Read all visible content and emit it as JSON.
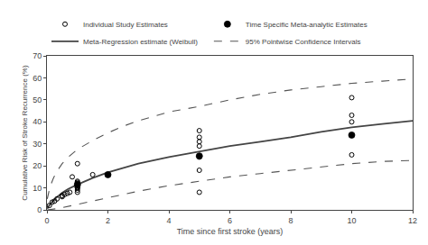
{
  "chart_data": {
    "type": "line",
    "xlabel": "Time since first stroke (years)",
    "ylabel": "Cumulative Risk of Stroke Recurrence (%)",
    "xlim": [
      0,
      12
    ],
    "ylim": [
      0,
      70
    ],
    "xticks": [
      0,
      2,
      4,
      6,
      8,
      10,
      12
    ],
    "yticks": [
      0,
      10,
      20,
      30,
      40,
      50,
      60,
      70
    ],
    "grid": false,
    "legend": "upper left",
    "series": [
      {
        "name": "Individual Study Estimates",
        "type": "scatter",
        "marker": "circle-open",
        "color": "#000000",
        "x": [
          0.08,
          0.17,
          0.25,
          0.33,
          0.5,
          0.5,
          0.58,
          0.67,
          0.75,
          0.83,
          1.0,
          1.0,
          1.0,
          1.0,
          1.0,
          1.0,
          1.0,
          1.0,
          1.0,
          1.0,
          1.0,
          1.5,
          2.0,
          5.0,
          5.0,
          5.0,
          5.0,
          5.0,
          5.0,
          5.0,
          10.0,
          10.0,
          10.0,
          10.0
        ],
        "values": [
          2.0,
          3.5,
          4.0,
          5.0,
          6.0,
          6.5,
          7.0,
          7.5,
          8.0,
          15.0,
          8.0,
          9.0,
          10.0,
          11.0,
          12.0,
          13.0,
          10.5,
          11.5,
          10.0,
          12.5,
          21.0,
          16.0,
          16.0,
          18.0,
          24.0,
          29.0,
          31.0,
          33.0,
          36.0,
          8.0,
          25.0,
          40.0,
          43.0,
          51.0
        ]
      },
      {
        "name": "Time Specific Meta-analytic Estimates",
        "type": "scatter",
        "marker": "circle",
        "color": "#000000",
        "x": [
          1.0,
          2.0,
          5.0,
          10.0
        ],
        "values": [
          11.5,
          16.0,
          24.5,
          34.0
        ]
      },
      {
        "name": "Meta-Regression estimate (Weibull)",
        "type": "line",
        "line_style": "solid",
        "color": "#444444",
        "x": [
          0.01,
          0.05,
          0.1,
          0.2,
          0.3,
          0.5,
          0.7,
          1.0,
          1.5,
          2.0,
          2.5,
          3.0,
          4.0,
          5.0,
          6.0,
          7.0,
          8.0,
          9.0,
          10.0,
          11.0,
          12.0
        ],
        "values": [
          0.5,
          1.5,
          2.5,
          4.0,
          5.5,
          7.8,
          9.5,
          11.5,
          14.5,
          17.0,
          19.0,
          21.0,
          24.0,
          26.5,
          29.0,
          31.0,
          33.0,
          35.5,
          37.5,
          39.0,
          40.5
        ]
      },
      {
        "name": "95% Pointwise Confidence Intervals",
        "type": "line",
        "line_style": "dashed",
        "color": "#555555",
        "x": [
          0.01,
          0.05,
          0.1,
          0.2,
          0.3,
          0.5,
          0.7,
          1.0,
          1.5,
          2.0,
          2.5,
          3.0,
          4.0,
          5.0,
          6.0,
          7.0,
          8.0,
          9.0,
          10.0,
          11.0,
          12.0
        ],
        "values": [
          5.0,
          8.0,
          10.5,
          14.0,
          17.0,
          21.0,
          24.0,
          27.5,
          31.5,
          35.0,
          38.0,
          40.5,
          44.5,
          47.0,
          50.0,
          52.5,
          54.5,
          56.0,
          57.5,
          58.5,
          59.5
        ]
      },
      {
        "name": "95% Pointwise Confidence Intervals",
        "type": "line",
        "line_style": "dashed",
        "color": "#555555",
        "x": [
          0.01,
          0.05,
          0.1,
          0.2,
          0.3,
          0.5,
          0.7,
          1.0,
          1.5,
          2.0,
          2.5,
          3.0,
          4.0,
          5.0,
          6.0,
          7.0,
          8.0,
          9.0,
          10.0,
          11.0,
          12.0
        ],
        "values": [
          0.0,
          0.05,
          0.1,
          0.3,
          0.5,
          1.0,
          1.5,
          2.5,
          4.0,
          5.5,
          7.0,
          8.5,
          11.0,
          13.0,
          15.0,
          16.5,
          18.0,
          19.5,
          21.0,
          22.0,
          22.5
        ]
      }
    ]
  }
}
